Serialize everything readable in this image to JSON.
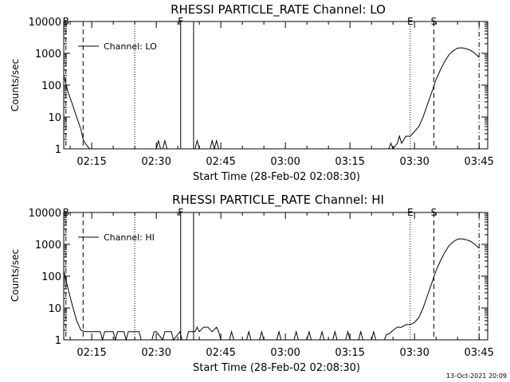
{
  "footer": {
    "timestamp": "13-Oct-2021 20:09"
  },
  "chart_data": [
    {
      "type": "line",
      "title": "RHESSI PARTICLE_RATE Channel: LO",
      "xlabel": "Start Time (28-Feb-02 02:08:30)",
      "ylabel": "Counts/sec",
      "yscale": "log",
      "ylim": [
        1,
        10000
      ],
      "xlim": [
        "02:08:30",
        "03:47:00"
      ],
      "x_ticks": [
        "02:15",
        "02:30",
        "02:45",
        "03:00",
        "03:15",
        "03:30",
        "03:45"
      ],
      "y_ticks": [
        "1",
        "10",
        "100",
        "1000",
        "10000"
      ],
      "legend": {
        "position": "top-left",
        "entries": [
          "Channel: LO"
        ]
      },
      "markers": [
        {
          "label": "B",
          "time": "02:09:00",
          "style": "dashed"
        },
        {
          "label": "",
          "time": "02:13:00",
          "style": "dashed"
        },
        {
          "label": "",
          "time": "02:25:00",
          "style": "dotted"
        },
        {
          "label": "F",
          "time": "02:35:40",
          "style": "solid"
        },
        {
          "label": "",
          "time": "02:38:40",
          "style": "solid"
        },
        {
          "label": "E",
          "time": "03:29:00",
          "style": "dotted"
        },
        {
          "label": "S",
          "time": "03:34:30",
          "style": "dashed"
        },
        {
          "label": "",
          "time": "03:45:00",
          "style": "dashdot"
        }
      ],
      "series": [
        {
          "name": "Channel: LO",
          "x": [
            "02:08:30",
            "02:09:30",
            "02:10:30",
            "02:11:30",
            "02:12:30",
            "02:13:00",
            "02:13:30",
            "02:14:00",
            "02:14:30",
            "02:30:00",
            "02:30:30",
            "02:31:00",
            "02:31:30",
            "02:32:00",
            "02:32:30",
            "02:33:00",
            "02:39:00",
            "02:39:30",
            "02:40:00",
            "02:42:30",
            "02:43:00",
            "02:43:30",
            "02:44:00",
            "02:44:30",
            "02:45:00",
            "03:24:00",
            "03:24:30",
            "03:25:00",
            "03:26:00",
            "03:26:30",
            "03:27:00",
            "03:28:00",
            "03:29:00",
            "03:30:00",
            "03:31:00",
            "03:32:00",
            "03:33:00",
            "03:34:00",
            "03:35:00",
            "03:36:00",
            "03:37:00",
            "03:38:00",
            "03:39:00",
            "03:40:00",
            "03:41:00",
            "03:42:00",
            "03:43:00",
            "03:44:00",
            "03:45:00"
          ],
          "y": [
            200,
            60,
            25,
            10,
            4,
            2,
            1.5,
            1.2,
            1,
            1,
            1.8,
            1,
            1,
            1.8,
            1,
            1,
            1,
            1.8,
            1,
            1,
            1.8,
            1,
            1.8,
            1,
            1,
            1,
            1.5,
            1,
            1.5,
            2.5,
            1.5,
            2.5,
            2.5,
            3.5,
            5,
            10,
            25,
            60,
            150,
            300,
            550,
            900,
            1200,
            1450,
            1500,
            1400,
            1250,
            1000,
            750
          ]
        }
      ]
    },
    {
      "type": "line",
      "title": "RHESSI PARTICLE_RATE Channel: HI",
      "xlabel": "Start Time (28-Feb-02 02:08:30)",
      "ylabel": "Counts/sec",
      "yscale": "log",
      "ylim": [
        1,
        10000
      ],
      "xlim": [
        "02:08:30",
        "03:47:00"
      ],
      "x_ticks": [
        "02:15",
        "02:30",
        "02:45",
        "03:00",
        "03:15",
        "03:30",
        "03:45"
      ],
      "y_ticks": [
        "1",
        "10",
        "100",
        "1000",
        "10000"
      ],
      "legend": {
        "position": "top-left",
        "entries": [
          "Channel: HI"
        ]
      },
      "markers": [
        {
          "label": "B",
          "time": "02:09:00",
          "style": "dashed"
        },
        {
          "label": "",
          "time": "02:13:00",
          "style": "dashed"
        },
        {
          "label": "",
          "time": "02:25:00",
          "style": "dotted"
        },
        {
          "label": "F",
          "time": "02:35:40",
          "style": "solid"
        },
        {
          "label": "",
          "time": "02:38:40",
          "style": "solid"
        },
        {
          "label": "E",
          "time": "03:29:00",
          "style": "dotted"
        },
        {
          "label": "S",
          "time": "03:34:30",
          "style": "dashed"
        },
        {
          "label": "",
          "time": "03:45:00",
          "style": "dashdot"
        }
      ],
      "series": [
        {
          "name": "Channel: HI",
          "x": [
            "02:08:30",
            "02:09:30",
            "02:10:30",
            "02:11:30",
            "02:12:30",
            "02:13:30",
            "02:17:00",
            "02:17:30",
            "02:18:00",
            "02:20:00",
            "02:20:30",
            "02:21:00",
            "02:22:30",
            "02:23:00",
            "02:23:30",
            "02:26:00",
            "02:26:30",
            "02:29:00",
            "02:29:30",
            "02:30:00",
            "02:31:30",
            "02:32:00",
            "02:33:30",
            "02:34:00",
            "02:35:30",
            "02:36:00",
            "02:37:00",
            "02:37:30",
            "02:39:00",
            "02:39:30",
            "02:40:00",
            "02:41:00",
            "02:42:00",
            "02:43:00",
            "02:44:00",
            "02:44:30",
            "02:45:00",
            "02:47:00",
            "02:47:30",
            "02:48:00",
            "02:51:00",
            "02:51:30",
            "02:52:00",
            "02:54:00",
            "02:54:30",
            "02:55:00",
            "02:58:00",
            "02:58:30",
            "02:59:00",
            "03:02:00",
            "03:02:30",
            "03:03:00",
            "03:05:00",
            "03:05:30",
            "03:06:00",
            "03:08:00",
            "03:08:30",
            "03:09:00",
            "03:11:00",
            "03:11:30",
            "03:12:00",
            "03:14:00",
            "03:14:30",
            "03:15:00",
            "03:17:00",
            "03:17:30",
            "03:18:00",
            "03:20:00",
            "03:20:30",
            "03:21:00",
            "03:23:00",
            "03:23:30",
            "03:24:00",
            "03:25:00",
            "03:26:00",
            "03:27:00",
            "03:28:00",
            "03:29:00",
            "03:30:00",
            "03:31:00",
            "03:32:00",
            "03:33:00",
            "03:34:00",
            "03:35:00",
            "03:36:00",
            "03:37:00",
            "03:38:00",
            "03:39:00",
            "03:40:00",
            "03:41:00",
            "03:42:00",
            "03:43:00",
            "03:44:00",
            "03:45:00"
          ],
          "y": [
            150,
            40,
            12,
            4,
            2,
            1.8,
            1.8,
            1,
            1.8,
            1.8,
            1,
            1.8,
            1.8,
            1,
            1.8,
            1.8,
            1,
            1,
            1.8,
            1.8,
            1,
            1.8,
            1.8,
            1,
            1.8,
            1,
            1,
            1.8,
            1.8,
            2.5,
            1.8,
            2.5,
            2.5,
            1.8,
            2.5,
            1.8,
            1,
            1,
            1.8,
            1,
            1,
            1.8,
            1,
            1,
            1.8,
            1,
            1,
            1.8,
            1,
            1,
            1.8,
            1,
            1,
            1.8,
            1,
            1,
            1.8,
            1,
            1,
            1.8,
            1,
            1,
            1.8,
            1,
            1,
            1.8,
            1,
            1,
            1.8,
            1,
            1,
            1.5,
            1.5,
            2,
            2.5,
            2.5,
            3,
            3,
            3.5,
            5,
            10,
            25,
            60,
            150,
            300,
            550,
            900,
            1200,
            1450,
            1500,
            1400,
            1250,
            1000,
            750
          ]
        }
      ]
    }
  ]
}
